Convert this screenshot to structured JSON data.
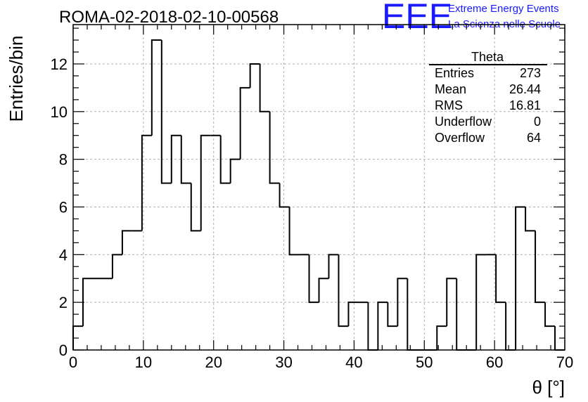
{
  "chart_data": {
    "type": "bar",
    "title": "ROMA-02-2018-02-10-00568",
    "xlabel": "θ [°]",
    "ylabel": "Entries/bin",
    "xlim": [
      0,
      70
    ],
    "ylim": [
      0,
      13.65
    ],
    "xticks": [
      0,
      10,
      20,
      30,
      40,
      50,
      60,
      70
    ],
    "yticks": [
      0,
      2,
      4,
      6,
      8,
      10,
      12
    ],
    "grid": true,
    "bin_width": 1.4,
    "bin_start": 0,
    "values": [
      1,
      3,
      3,
      3,
      4,
      5,
      5,
      9,
      13,
      7,
      9,
      7,
      5,
      9,
      9,
      7,
      8,
      11,
      12,
      10,
      7,
      6,
      4,
      4,
      2,
      3,
      4,
      1,
      2,
      2,
      0,
      2,
      1,
      3,
      0,
      0,
      0,
      1,
      3,
      0,
      0,
      4,
      4,
      2,
      0,
      6,
      5,
      2,
      1,
      0
    ]
  },
  "stats_box": {
    "title": "Theta",
    "rows": [
      {
        "label": "Entries",
        "value": "273"
      },
      {
        "label": "Mean",
        "value": "26.44"
      },
      {
        "label": "RMS",
        "value": "16.81"
      },
      {
        "label": "Underflow",
        "value": "0"
      },
      {
        "label": "Overflow",
        "value": "64"
      }
    ]
  },
  "logo": {
    "mark": "EEE",
    "line1": "Extreme Energy Events",
    "line2": "La Scienza nelle Scuole",
    "color": "#1a1aff"
  }
}
